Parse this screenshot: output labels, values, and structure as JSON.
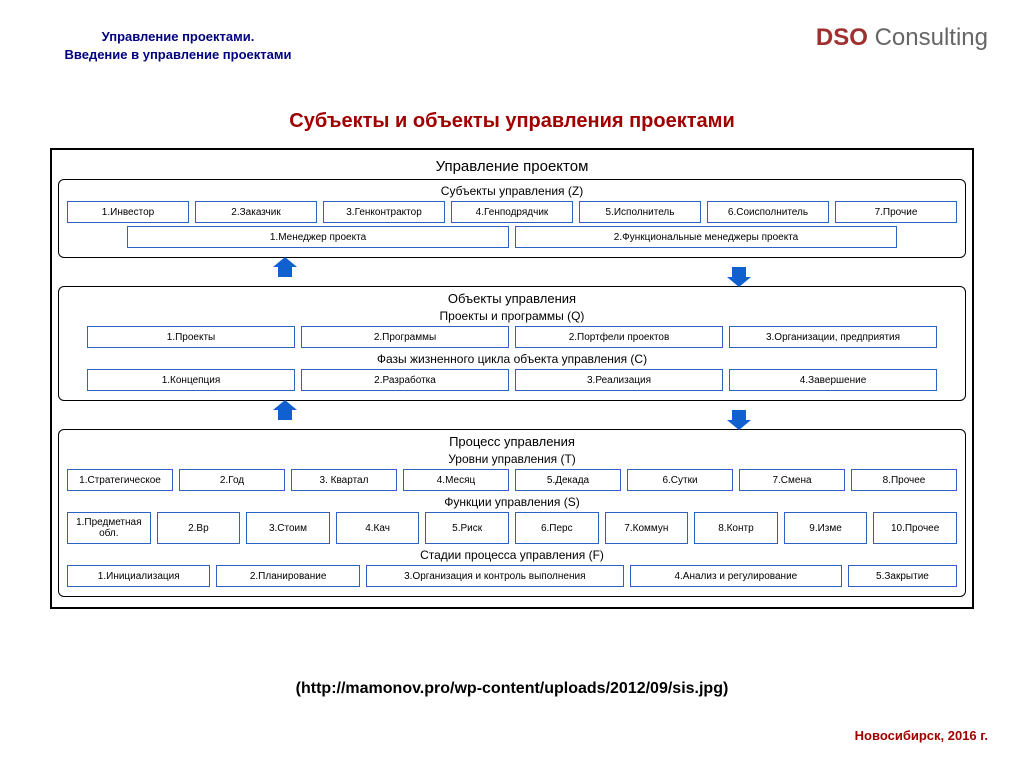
{
  "header": {
    "left_line1": "Управление проектами.",
    "left_line2": "Введение в управление проектами",
    "logo_bold": "DSO",
    "logo_light": " Consulting"
  },
  "title": "Субъекты и объекты управления проектами",
  "diagram": {
    "main_title": "Управление   проектом",
    "panel1": {
      "subtitle": "Субъекты  управления (Z)",
      "row1": [
        "1.Инвестор",
        "2.Заказчик",
        "3.Генконтрактор",
        "4.Генподрядчик",
        "5.Исполнитель",
        "6.Соисполнитель",
        "7.Прочие"
      ],
      "row2": [
        "1.Менеджер проекта",
        "2.Функциональные менеджеры проекта"
      ]
    },
    "panel2": {
      "title": "Объекты   управления",
      "sub1_title": "Проекты  и программы (Q)",
      "sub1_row": [
        "1.Проекты",
        "2.Программы",
        "2.Портфели проектов",
        "3.Организации, предприятия"
      ],
      "sub2_title": "Фазы жизненного цикла объекта управления (С)",
      "sub2_row": [
        "1.Концепция",
        "2.Разработка",
        "3.Реализация",
        "4.Завершение"
      ]
    },
    "panel3": {
      "title": "Процесс  управления",
      "sub1_title": "Уровни управления (T)",
      "sub1_row": [
        "1.Стратегическое",
        "2.Год",
        "3. Квартал",
        "4.Месяц",
        "5.Декада",
        "6.Сутки",
        "7.Смена",
        "8.Прочее"
      ],
      "sub2_title": "Функции управления (S)",
      "sub2_row": [
        "1.Предметная обл.",
        "2.Вр",
        "3.Стоим",
        "4.Кач",
        "5.Риск",
        "6.Перс",
        "7.Коммун",
        "8.Контр",
        "9.Изме",
        "10.Прочее"
      ],
      "sub3_title": "Стадии процесса  управления (F)",
      "sub3_row": [
        "1.Инициализация",
        "2.Планирование",
        "3.Организация и контроль выполнения",
        "4.Анализ и регулирование",
        "5.Закрытие"
      ]
    }
  },
  "footer": {
    "url": "(http://mamonov.pro/wp-content/uploads/2012/09/sis.jpg)",
    "location": "Новосибирск, 2016 г."
  },
  "colors": {
    "accent_red": "#a00000",
    "header_blue": "#000080",
    "box_border": "#3060c0",
    "arrow_fill": "#1060d0"
  }
}
